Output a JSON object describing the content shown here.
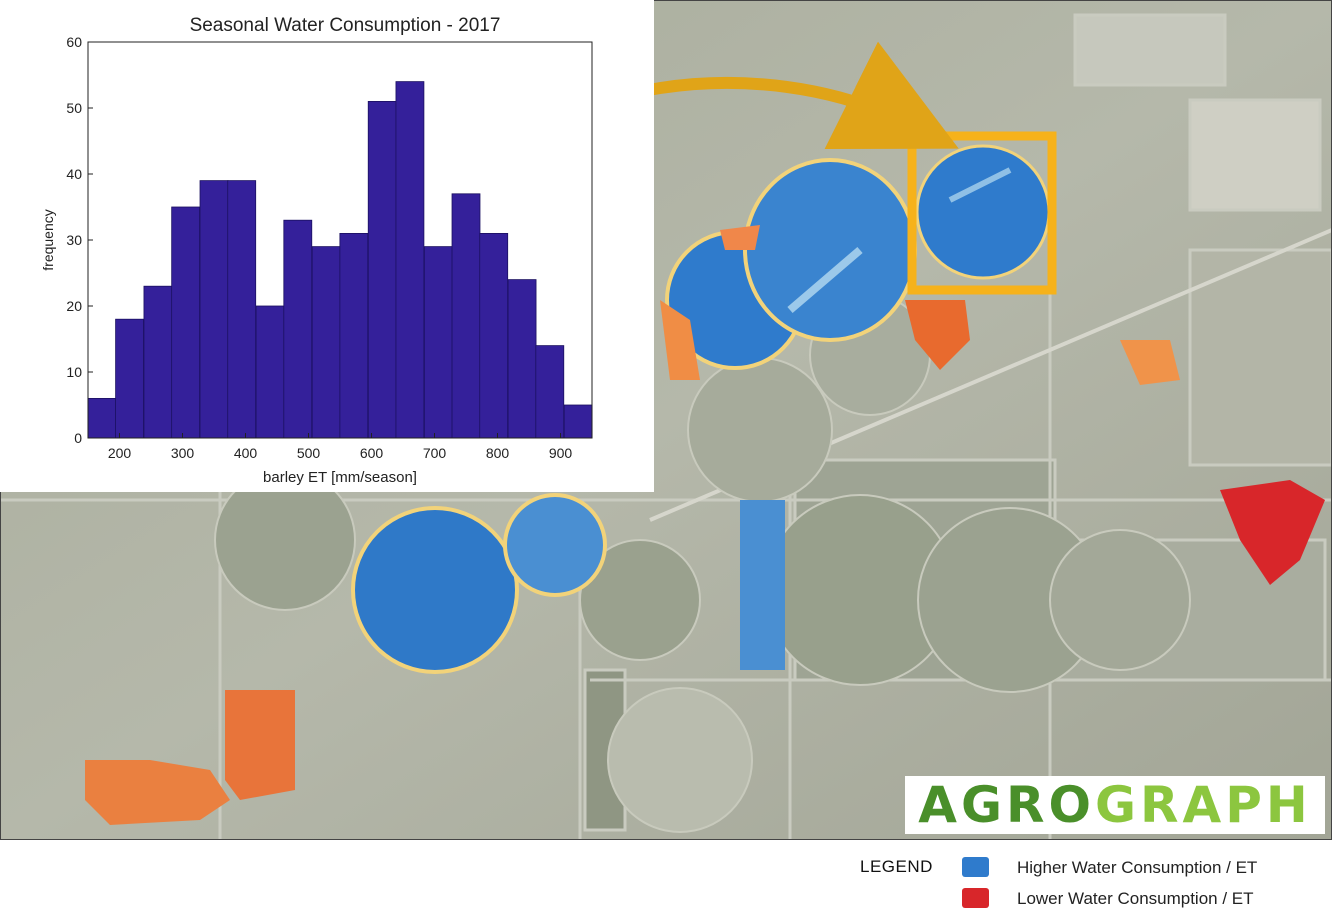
{
  "chart_data": {
    "type": "bar",
    "title": "Seasonal Water Consumption - 2017",
    "xlabel": "barley ET [mm/season]",
    "ylabel": "frequency",
    "xlim": [
      150,
      950
    ],
    "ylim": [
      0,
      60
    ],
    "xticks": [
      200,
      300,
      400,
      500,
      600,
      700,
      800,
      900
    ],
    "yticks": [
      0,
      10,
      20,
      30,
      40,
      50,
      60
    ],
    "bin_width": 44.4,
    "bins": [
      {
        "x": 172,
        "count": 6
      },
      {
        "x": 216,
        "count": 18
      },
      {
        "x": 261,
        "count": 23
      },
      {
        "x": 305,
        "count": 35
      },
      {
        "x": 350,
        "count": 39
      },
      {
        "x": 394,
        "count": 39
      },
      {
        "x": 439,
        "count": 20
      },
      {
        "x": 483,
        "count": 33
      },
      {
        "x": 528,
        "count": 29
      },
      {
        "x": 572,
        "count": 31
      },
      {
        "x": 617,
        "count": 51
      },
      {
        "x": 661,
        "count": 54
      },
      {
        "x": 706,
        "count": 29
      },
      {
        "x": 750,
        "count": 37
      },
      {
        "x": 794,
        "count": 31
      },
      {
        "x": 839,
        "count": 24
      },
      {
        "x": 883,
        "count": 14
      },
      {
        "x": 928,
        "count": 5
      }
    ],
    "bar_color": "#34209a",
    "grid": false
  },
  "map": {
    "highlight_color": "#f6b21b",
    "higher_color": "#2f7bcc",
    "lower_color": "#d8262a"
  },
  "logo": {
    "part1": "AGRO",
    "part2": "GRAPH"
  },
  "legend": {
    "title": "LEGEND",
    "items": [
      {
        "label": "Higher Water Consumption / ET",
        "color": "#2f7bcc"
      },
      {
        "label": "Lower Water Consumption / ET",
        "color": "#d8262a"
      }
    ]
  }
}
